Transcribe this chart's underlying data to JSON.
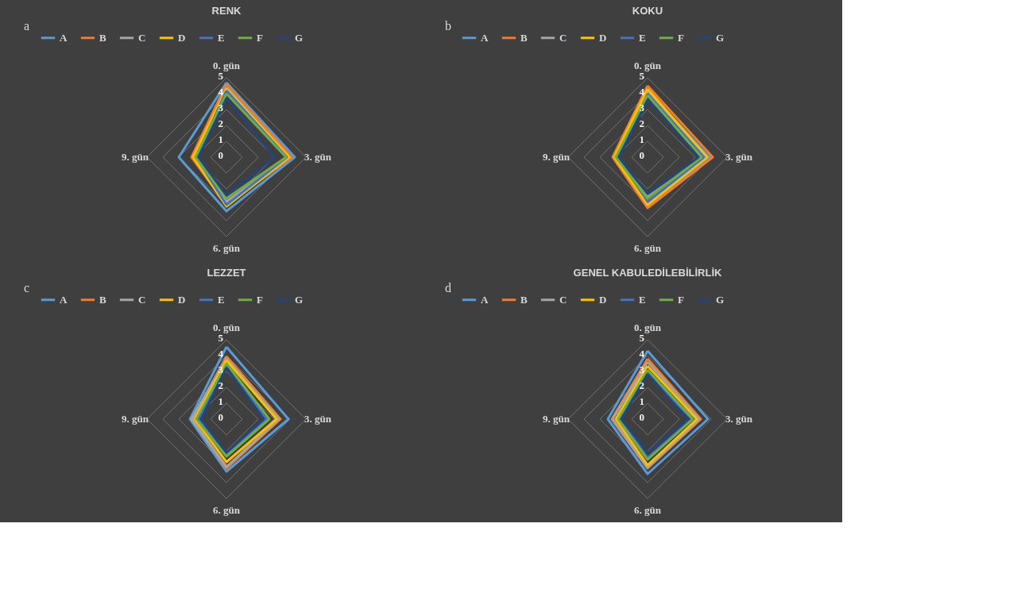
{
  "chart_data": [
    {
      "type": "radar",
      "title": "RENK",
      "annotations": [
        "a"
      ],
      "categories": [
        "0. gün",
        "3. gün",
        "6. gün",
        "9. gün"
      ],
      "ylim": [
        0,
        5
      ],
      "yticks": [
        0,
        1,
        2,
        3,
        4,
        5
      ],
      "grid": true,
      "legend": "top",
      "series": [
        {
          "name": "A",
          "color": "#5b9bd5",
          "values": [
            4.7,
            4.3,
            3.4,
            3.0
          ]
        },
        {
          "name": "B",
          "color": "#ed7d31",
          "values": [
            4.6,
            4.1,
            3.0,
            2.2
          ]
        },
        {
          "name": "C",
          "color": "#a5a5a5",
          "values": [
            4.4,
            3.9,
            2.8,
            2.0
          ]
        },
        {
          "name": "D",
          "color": "#ffc000",
          "values": [
            4.3,
            3.95,
            3.1,
            2.1
          ]
        },
        {
          "name": "E",
          "color": "#4472c4",
          "values": [
            4.2,
            3.8,
            3.0,
            1.9
          ]
        },
        {
          "name": "F",
          "color": "#70ad47",
          "values": [
            4.0,
            3.75,
            2.6,
            1.95
          ]
        },
        {
          "name": "G",
          "color": "#264478",
          "values": [
            3.7,
            3.0,
            2.4,
            1.75
          ]
        }
      ]
    },
    {
      "type": "radar",
      "title": "KOKU",
      "annotations": [
        "b"
      ],
      "categories": [
        "0. gün",
        "3. gün",
        "6. gün",
        "9. gün"
      ],
      "ylim": [
        0,
        5
      ],
      "yticks": [
        0,
        1,
        2,
        3,
        4,
        5
      ],
      "grid": true,
      "legend": "top",
      "series": [
        {
          "name": "A",
          "color": "#5b9bd5",
          "values": [
            4.2,
            3.9,
            3.1,
            2.1
          ]
        },
        {
          "name": "B",
          "color": "#ed7d31",
          "values": [
            4.5,
            4.1,
            3.2,
            2.2
          ]
        },
        {
          "name": "C",
          "color": "#a5a5a5",
          "values": [
            4.1,
            3.6,
            2.5,
            2.0
          ]
        },
        {
          "name": "D",
          "color": "#ffc000",
          "values": [
            4.3,
            3.75,
            3.0,
            2.1
          ]
        },
        {
          "name": "E",
          "color": "#4472c4",
          "values": [
            4.0,
            3.55,
            2.8,
            1.8
          ]
        },
        {
          "name": "F",
          "color": "#70ad47",
          "values": [
            3.9,
            3.4,
            2.6,
            2.0
          ]
        },
        {
          "name": "G",
          "color": "#264478",
          "values": [
            3.6,
            3.2,
            2.3,
            1.8
          ]
        }
      ]
    },
    {
      "type": "radar",
      "title": "LEZZET",
      "annotations": [
        "c"
      ],
      "categories": [
        "0. gün",
        "3. gün",
        "6. gün",
        "9. gün"
      ],
      "ylim": [
        0,
        5
      ],
      "yticks": [
        0,
        1,
        2,
        3,
        4,
        5
      ],
      "grid": true,
      "legend": "top",
      "series": [
        {
          "name": "A",
          "color": "#5b9bd5",
          "values": [
            4.55,
            3.9,
            3.3,
            2.3
          ]
        },
        {
          "name": "B",
          "color": "#ed7d31",
          "values": [
            3.95,
            3.4,
            3.1,
            2.15
          ]
        },
        {
          "name": "C",
          "color": "#a5a5a5",
          "values": [
            3.8,
            3.3,
            3.0,
            2.2
          ]
        },
        {
          "name": "D",
          "color": "#ffc000",
          "values": [
            3.7,
            3.15,
            2.7,
            2.0
          ]
        },
        {
          "name": "E",
          "color": "#4472c4",
          "values": [
            3.3,
            2.5,
            2.2,
            1.7
          ]
        },
        {
          "name": "F",
          "color": "#70ad47",
          "values": [
            3.5,
            2.7,
            2.35,
            1.9
          ]
        },
        {
          "name": "G",
          "color": "#264478",
          "values": [
            3.25,
            2.35,
            2.1,
            1.6
          ]
        }
      ]
    },
    {
      "type": "radar",
      "title": "GENEL KABULEDİLEBİLİRLİK",
      "annotations": [
        "d"
      ],
      "categories": [
        "0. gün",
        "3. gün",
        "6. gün",
        "9. gün"
      ],
      "ylim": [
        0,
        5
      ],
      "yticks": [
        0,
        1,
        2,
        3,
        4,
        5
      ],
      "grid": true,
      "legend": "top",
      "series": [
        {
          "name": "A",
          "color": "#5b9bd5",
          "values": [
            4.3,
            3.8,
            3.45,
            2.5
          ]
        },
        {
          "name": "B",
          "color": "#ed7d31",
          "values": [
            3.8,
            3.35,
            3.1,
            2.25
          ]
        },
        {
          "name": "C",
          "color": "#a5a5a5",
          "values": [
            3.6,
            3.25,
            3.05,
            2.2
          ]
        },
        {
          "name": "D",
          "color": "#ffc000",
          "values": [
            3.35,
            3.1,
            2.9,
            2.0
          ]
        },
        {
          "name": "E",
          "color": "#4472c4",
          "values": [
            2.9,
            2.8,
            2.45,
            1.7
          ]
        },
        {
          "name": "F",
          "color": "#70ad47",
          "values": [
            3.1,
            2.85,
            2.55,
            1.85
          ]
        },
        {
          "name": "G",
          "color": "#264478",
          "values": [
            2.85,
            2.5,
            2.1,
            1.65
          ]
        }
      ]
    }
  ]
}
